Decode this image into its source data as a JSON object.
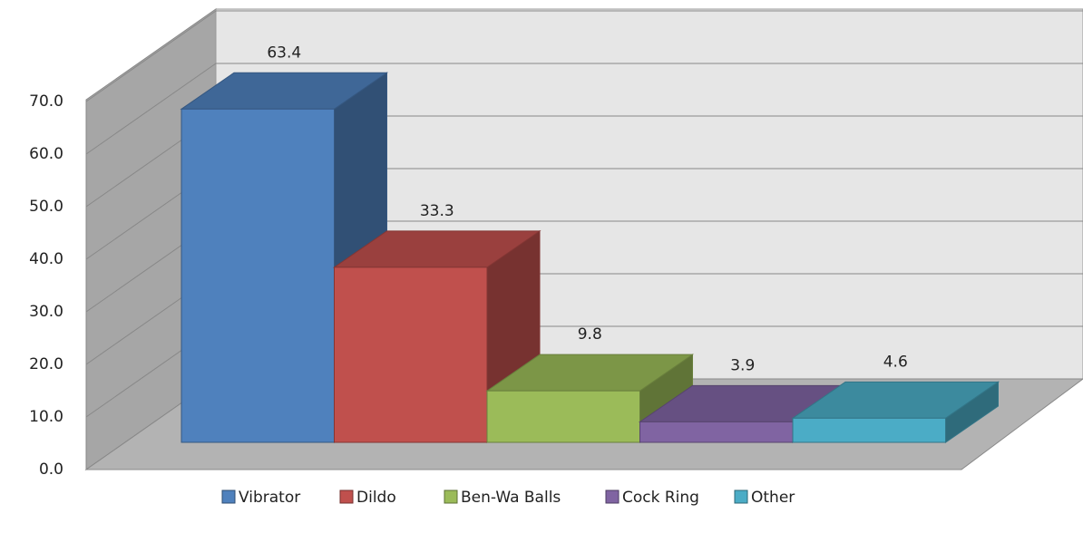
{
  "chart_data": {
    "type": "bar3d",
    "categories": [
      null
    ],
    "series": [
      {
        "name": "Vibrator",
        "color": "#4f81bd",
        "values": [
          63.4
        ]
      },
      {
        "name": "Dildo",
        "color": "#c0504d",
        "values": [
          33.3
        ]
      },
      {
        "name": "Ben-Wa Balls",
        "color": "#9bbb59",
        "values": [
          9.8
        ]
      },
      {
        "name": "Cock Ring",
        "color": "#8064a2",
        "values": [
          3.9
        ]
      },
      {
        "name": "Other",
        "color": "#4bacc6",
        "values": [
          4.6
        ]
      }
    ],
    "ylim": [
      0,
      70
    ],
    "yticks": [
      {
        "value": 0,
        "label": "0.0"
      },
      {
        "value": 10,
        "label": "10.0"
      },
      {
        "value": 20,
        "label": "20.0"
      },
      {
        "value": 30,
        "label": "30.0"
      },
      {
        "value": 40,
        "label": "40.0"
      },
      {
        "value": 50,
        "label": "50.0"
      },
      {
        "value": 60,
        "label": "60.0"
      },
      {
        "value": 70,
        "label": "70.0"
      }
    ],
    "grid": true,
    "legend": "bottom"
  }
}
